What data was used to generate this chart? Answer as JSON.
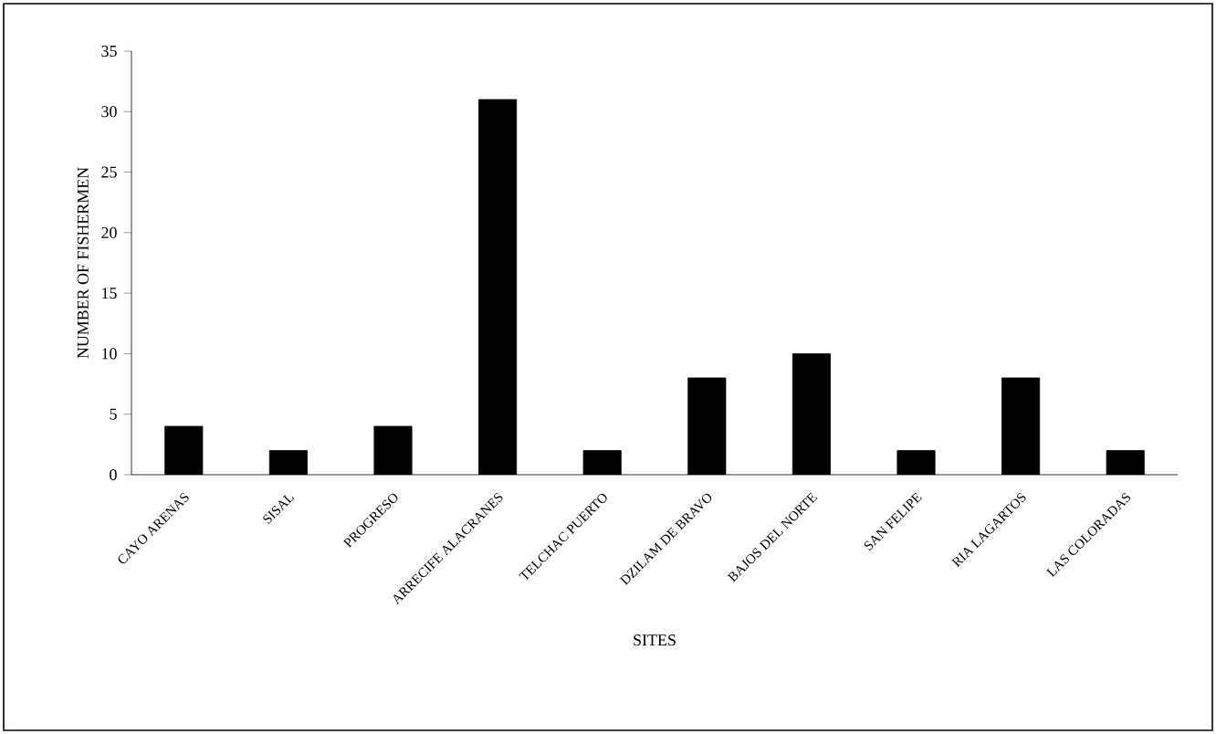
{
  "chart_data": {
    "type": "bar",
    "categories": [
      "CAYO ARENAS",
      "SISAL",
      "PROGRESO",
      "ARRECIFE ALACRANES",
      "TELCHAC PUERTO",
      "DZILAM DE BRAVO",
      "BAJOS DEL NORTE",
      "SAN FELIPE",
      "RIA LAGARTOS",
      "LAS COLORADAS"
    ],
    "values": [
      4,
      2,
      4,
      31,
      2,
      8,
      10,
      2,
      8,
      2
    ],
    "color": "#000000",
    "ylim": [
      0,
      35
    ],
    "yticks": [
      0,
      5,
      10,
      15,
      20,
      25,
      30,
      35
    ],
    "xlabel": "SITES",
    "ylabel": "NUMBER OF FISHERMEN"
  }
}
